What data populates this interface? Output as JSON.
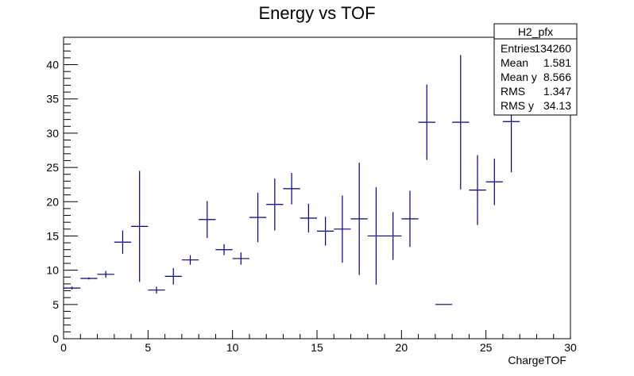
{
  "chart_data": {
    "type": "scatter",
    "title": "Energy vs TOF",
    "xlabel": "ChargeTOF",
    "ylabel": "",
    "xlim": [
      0,
      30
    ],
    "ylim": [
      0,
      44
    ],
    "xticks": [
      0,
      5,
      10,
      15,
      20,
      25,
      30
    ],
    "yticks": [
      0,
      5,
      10,
      15,
      20,
      25,
      30,
      35,
      40
    ],
    "grid": false,
    "series_color": "#000080",
    "points": [
      {
        "x": 0.5,
        "y": 7.4,
        "xerr": 0.5,
        "yerr": 0.2
      },
      {
        "x": 1.5,
        "y": 8.8,
        "xerr": 0.5,
        "yerr": 0.15
      },
      {
        "x": 2.5,
        "y": 9.4,
        "xerr": 0.5,
        "yerr": 0.5
      },
      {
        "x": 3.5,
        "y": 14.1,
        "xerr": 0.5,
        "yerr": 1.7
      },
      {
        "x": 4.5,
        "y": 16.4,
        "xerr": 0.5,
        "yerr": 8.1
      },
      {
        "x": 5.5,
        "y": 7.1,
        "xerr": 0.5,
        "yerr": 0.5
      },
      {
        "x": 6.5,
        "y": 9.1,
        "xerr": 0.5,
        "yerr": 1.2
      },
      {
        "x": 7.5,
        "y": 11.5,
        "xerr": 0.5,
        "yerr": 0.7
      },
      {
        "x": 8.5,
        "y": 17.4,
        "xerr": 0.5,
        "yerr": 2.7
      },
      {
        "x": 9.5,
        "y": 13.0,
        "xerr": 0.5,
        "yerr": 0.8
      },
      {
        "x": 10.5,
        "y": 11.7,
        "xerr": 0.5,
        "yerr": 0.9
      },
      {
        "x": 11.5,
        "y": 17.7,
        "xerr": 0.5,
        "yerr": 3.6
      },
      {
        "x": 12.5,
        "y": 19.6,
        "xerr": 0.5,
        "yerr": 3.8
      },
      {
        "x": 13.5,
        "y": 21.9,
        "xerr": 0.5,
        "yerr": 2.3
      },
      {
        "x": 14.5,
        "y": 17.6,
        "xerr": 0.5,
        "yerr": 2.1
      },
      {
        "x": 15.5,
        "y": 15.7,
        "xerr": 0.5,
        "yerr": 2.1
      },
      {
        "x": 16.5,
        "y": 16.0,
        "xerr": 0.5,
        "yerr": 4.9
      },
      {
        "x": 17.5,
        "y": 17.5,
        "xerr": 0.5,
        "yerr": 8.2
      },
      {
        "x": 18.5,
        "y": 15.0,
        "xerr": 0.5,
        "yerr": 7.1
      },
      {
        "x": 19.5,
        "y": 15.0,
        "xerr": 0.5,
        "yerr": 3.5
      },
      {
        "x": 20.5,
        "y": 17.5,
        "xerr": 0.5,
        "yerr": 4.1
      },
      {
        "x": 21.5,
        "y": 31.6,
        "xerr": 0.5,
        "yerr": 5.5
      },
      {
        "x": 22.5,
        "y": 5.0,
        "xerr": 0.5,
        "yerr": 0
      },
      {
        "x": 23.5,
        "y": 31.6,
        "xerr": 0.5,
        "yerr": 9.8
      },
      {
        "x": 24.5,
        "y": 21.7,
        "xerr": 0.5,
        "yerr": 5.1
      },
      {
        "x": 25.5,
        "y": 22.9,
        "xerr": 0.5,
        "yerr": 3.4
      },
      {
        "x": 26.5,
        "y": 31.7,
        "xerr": 0.5,
        "yerr": 7.4
      }
    ],
    "stats_box": {
      "name": "H2_pfx",
      "rows": [
        {
          "label": "Entries",
          "value": "134260"
        },
        {
          "label": "Mean",
          "value": "1.581"
        },
        {
          "label": "Mean y",
          "value": "8.566"
        },
        {
          "label": "RMS",
          "value": "1.347"
        },
        {
          "label": "RMS y",
          "value": "34.13"
        }
      ]
    }
  }
}
